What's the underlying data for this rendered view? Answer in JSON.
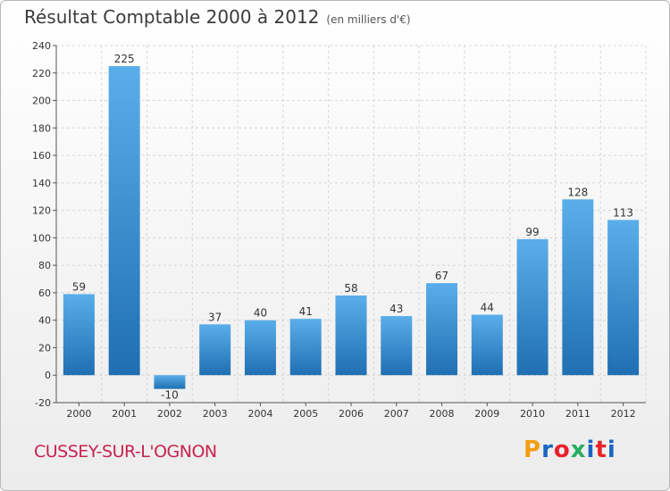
{
  "header": {
    "title": "Résultat Comptable 2000 à 2012",
    "unit": "(en milliers d'€)"
  },
  "footer": {
    "commune": "CUSSEY-SUR-L'OGNON",
    "logo": "Proxiti",
    "logo_colors": [
      "#f39c12",
      "#1a66c2",
      "#e8222a",
      "#27ae60",
      "#1a66c2",
      "#e8222a",
      "#1a66c2"
    ]
  },
  "colors": {
    "bar_top": "#5aaeea",
    "bar_bottom": "#1f6fb2",
    "commune": "#c8224f"
  },
  "chart_data": {
    "type": "bar",
    "title": "Résultat Comptable 2000 à 2012",
    "subtitle": "(en milliers d'€)",
    "xlabel": "",
    "ylabel": "",
    "categories": [
      "2000",
      "2001",
      "2002",
      "2003",
      "2004",
      "2005",
      "2006",
      "2007",
      "2008",
      "2009",
      "2010",
      "2011",
      "2012"
    ],
    "values": [
      59,
      225,
      -10,
      37,
      40,
      41,
      58,
      43,
      67,
      44,
      99,
      128,
      113
    ],
    "ylim": [
      -20,
      240
    ],
    "yticks": [
      -20,
      0,
      20,
      40,
      60,
      80,
      100,
      120,
      140,
      160,
      180,
      200,
      220,
      240
    ],
    "grid": true,
    "legend": "none"
  }
}
